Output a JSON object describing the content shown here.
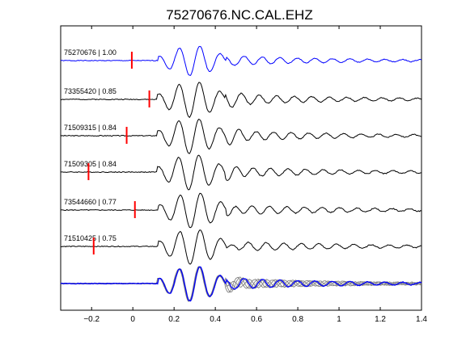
{
  "chart_data": {
    "type": "line",
    "title": "75270676.NC.CAL.EHZ",
    "xlabel": "",
    "ylabel": "",
    "xlim": [
      -0.35,
      1.4
    ],
    "xticks": [
      -0.2,
      0,
      0.2,
      0.4,
      0.6,
      0.8,
      1,
      1.2,
      1.4
    ],
    "xtick_labels": [
      "−0.2",
      "0",
      "0.2",
      "0.4",
      "0.6",
      "0.8",
      "1",
      "1.2",
      "1.4"
    ],
    "grid": false,
    "colors": {
      "reference": "#0000ff",
      "trace": "#000000",
      "stack": "#808080",
      "pick": "#ff0000"
    },
    "traces": [
      {
        "label": "75270676 | 1.00",
        "pick_time": -0.005,
        "color": "#0000ff",
        "seed": 1
      },
      {
        "label": "73355420 | 0.85",
        "pick_time": 0.08,
        "color": "#000000",
        "seed": 2
      },
      {
        "label": "71509315 | 0.84",
        "pick_time": -0.03,
        "color": "#000000",
        "seed": 3
      },
      {
        "label": "71509305 | 0.84",
        "pick_time": -0.215,
        "color": "#000000",
        "seed": 4
      },
      {
        "label": "73544660 | 0.77",
        "pick_time": 0.01,
        "color": "#000000",
        "seed": 5
      },
      {
        "label": "71510425 | 0.75",
        "pick_time": -0.19,
        "color": "#000000",
        "seed": 6
      }
    ],
    "overlay": {
      "reference_color": "#0000ff",
      "others_color": "#808080"
    }
  }
}
